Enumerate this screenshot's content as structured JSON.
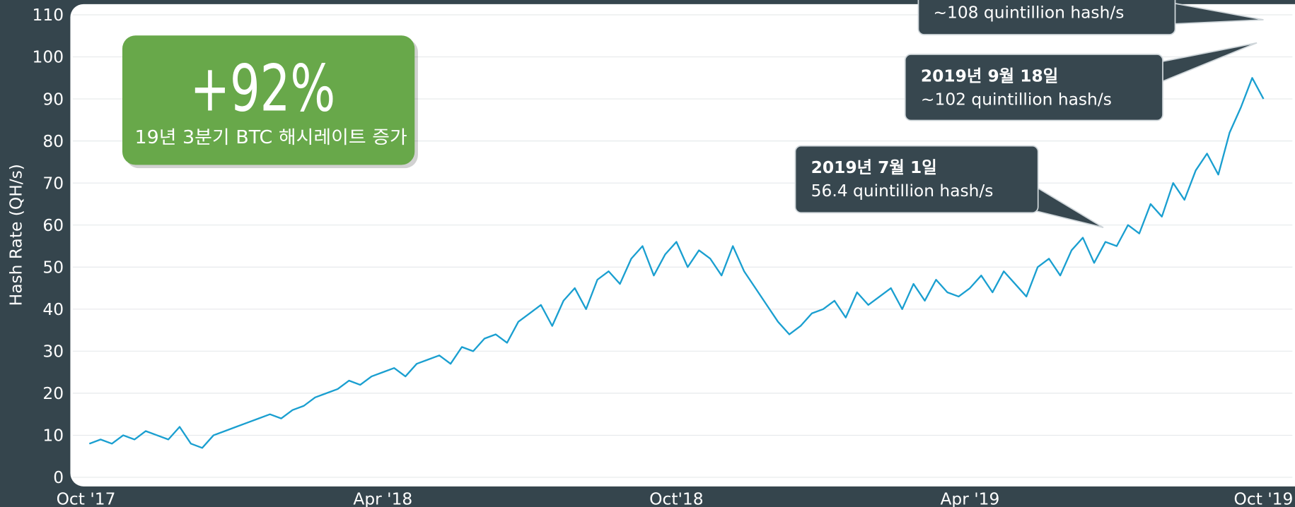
{
  "chart_data": {
    "type": "line",
    "y_label": "Hash Rate (QH/s)",
    "categories": [
      "Oct '17",
      null,
      null,
      null,
      null,
      null,
      null,
      null,
      null,
      null,
      null,
      null,
      null,
      null,
      null,
      null,
      null,
      null,
      null,
      null,
      null,
      null,
      null,
      null,
      null,
      null,
      "Apr '18",
      null,
      null,
      null,
      null,
      null,
      null,
      null,
      null,
      null,
      null,
      null,
      null,
      null,
      null,
      null,
      null,
      null,
      null,
      null,
      null,
      null,
      null,
      null,
      null,
      null,
      "Oct'18",
      null,
      null,
      null,
      null,
      null,
      null,
      null,
      null,
      null,
      null,
      null,
      null,
      null,
      null,
      null,
      null,
      null,
      null,
      null,
      null,
      null,
      null,
      null,
      null,
      null,
      "Apr '19",
      null,
      null,
      null,
      null,
      null,
      null,
      null,
      null,
      null,
      null,
      null,
      null,
      null,
      null,
      null,
      null,
      null,
      null,
      null,
      null,
      null,
      null,
      null,
      null,
      null,
      "Oct '19"
    ],
    "series": [
      {
        "name": "Hash Rate",
        "color": "#1a9fd0",
        "values": [
          8,
          9,
          8,
          10,
          9,
          11,
          10,
          9,
          12,
          8,
          7,
          10,
          11,
          12,
          13,
          14,
          15,
          14,
          16,
          17,
          19,
          20,
          21,
          23,
          22,
          24,
          25,
          26,
          24,
          27,
          28,
          29,
          27,
          31,
          30,
          33,
          34,
          32,
          37,
          39,
          41,
          36,
          42,
          45,
          40,
          47,
          49,
          46,
          52,
          55,
          48,
          53,
          56,
          50,
          54,
          52,
          48,
          55,
          49,
          45,
          41,
          37,
          34,
          36,
          39,
          40,
          42,
          38,
          44,
          41,
          43,
          45,
          40,
          46,
          42,
          47,
          44,
          43,
          45,
          48,
          44,
          49,
          46,
          43,
          50,
          52,
          48,
          54,
          57,
          51,
          56,
          55,
          60,
          58,
          65,
          62,
          70,
          66,
          73,
          77,
          72,
          82,
          88,
          95,
          90
        ]
      }
    ],
    "ylim": [
      0,
      110
    ],
    "yticks": [
      0,
      10,
      20,
      30,
      40,
      50,
      60,
      70,
      80,
      90,
      100,
      110
    ],
    "grid": true,
    "highlight": {
      "value": "+92%",
      "text": "19년 3분기 BTC 해시레이트 증가"
    },
    "annotations": [
      {
        "text": "~108 quintillion hash/s"
      },
      {
        "title": "2019년 9월 18일",
        "text": "~102 quintillion hash/s"
      },
      {
        "title": "2019년 7월 1일",
        "text": "56.4 quintillion hash/s"
      }
    ]
  }
}
